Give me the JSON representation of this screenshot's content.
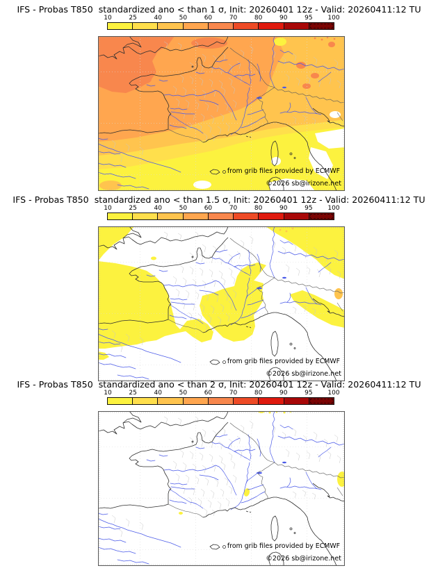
{
  "palette": {
    "white": "#FFFFFF",
    "bright_yellow": "#FCF23F",
    "yellow": "#FFDF4C",
    "amber": "#FFC44E",
    "orange": "#FFA64F",
    "dark_orange": "#F8874D",
    "red_orange": "#EE4B26",
    "red": "#DF1A0E",
    "dark_red": "#A80808",
    "maroon": "#7A0403",
    "coastline": "#2E2E2E",
    "country_border": "#5A5A5A",
    "department_border": "#C7C7C7",
    "river": "#4A5AE8",
    "graticule": "#DCDCDC",
    "frame": "#555555",
    "frame_ticks": "#AAAAAA",
    "text": "#000000"
  },
  "colorbar": {
    "ticks": [
      "10",
      "25",
      "40",
      "50",
      "60",
      "70",
      "80",
      "90",
      "95",
      "100"
    ],
    "colors": [
      "#FCF23F",
      "#FFDF4C",
      "#FFC44E",
      "#FFA64F",
      "#F8874D",
      "#EE4B26",
      "#DF1A0E",
      "#A80808",
      "#7A0403"
    ]
  },
  "panels": [
    {
      "id": "sigma-1",
      "title": "IFS - Probas T850  standardized ano < than 1 σ, Init: 20260401 12z - Valid: 20260411:12 TU"
    },
    {
      "id": "sigma-1.5",
      "title": "IFS - Probas T850  standardized ano < than 1.5 σ, Init: 20260401 12z - Valid: 20260411:12 TU"
    },
    {
      "id": "sigma-2",
      "title": "IFS - Probas T850  standardized ano < than 2 σ, Init: 20260401 12z - Valid: 20260411:12 TU"
    }
  ],
  "credits": {
    "provider": "from grib files provided by ECMWF",
    "copyright": "©2026 sb@irizone.net"
  }
}
